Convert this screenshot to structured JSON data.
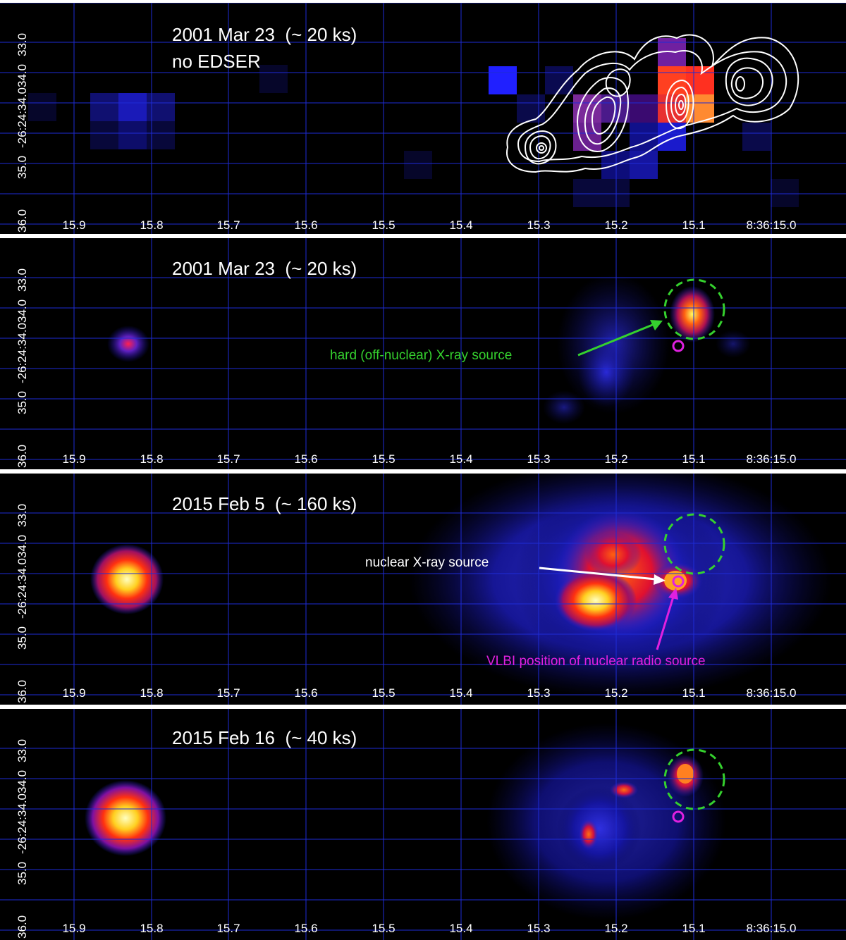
{
  "colors": {
    "grid": "#1e2bd6",
    "green_circle": "#35d12e",
    "magenta": "#e020e0",
    "white": "#ffffff"
  },
  "x_ticks": [
    "15.9",
    "15.8",
    "15.7",
    "15.6",
    "15.5",
    "15.4",
    "15.3",
    "15.2",
    "15.1",
    "8:36:15.0"
  ],
  "y_ticks": [
    "33.0",
    "34.0",
    "-26:24:34.0",
    "35.0",
    "36.0"
  ],
  "panels": [
    {
      "title": "2001 Mar 23  (~ 20 ks)",
      "subtitle": "no EDSER"
    },
    {
      "title": "2001 Mar 23  (~ 20 ks)",
      "annotation": "hard (off-nuclear) X-ray source"
    },
    {
      "title": "2015 Feb 5  (~ 160 ks)",
      "annotation_nuclear": "nuclear X-ray source",
      "annotation_vlbi": "VLBI position of nuclear radio source"
    },
    {
      "title": "2015 Feb 16  (~ 40 ks)"
    }
  ]
}
